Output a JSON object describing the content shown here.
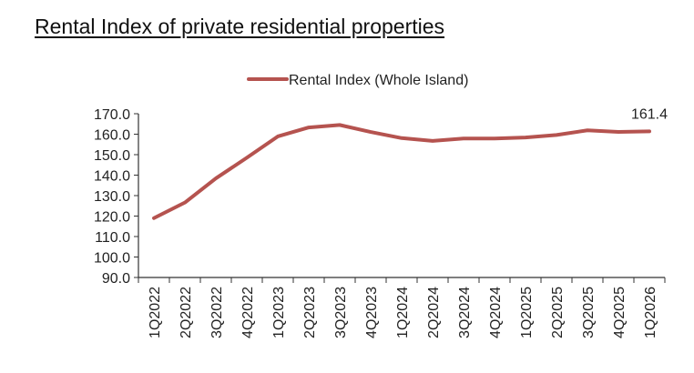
{
  "chart_data": {
    "type": "line",
    "title": "Rental Index of private residential properties",
    "xlabel": "",
    "ylabel": "",
    "categories": [
      "1Q2022",
      "2Q2022",
      "3Q2022",
      "4Q2022",
      "1Q2023",
      "2Q2023",
      "3Q2023",
      "4Q2023",
      "1Q2024",
      "2Q2024",
      "3Q2024",
      "4Q2024",
      "1Q2025",
      "2Q2025",
      "3Q2025",
      "4Q2025",
      "1Q2026"
    ],
    "series": [
      {
        "name": "Rental Index (Whole Island)",
        "color": "#b5534f",
        "values": [
          119.0,
          126.6,
          138.4,
          148.5,
          158.9,
          163.3,
          164.5,
          161.1,
          158.1,
          156.7,
          157.9,
          157.9,
          158.4,
          159.6,
          161.9,
          161.1,
          161.4
        ]
      }
    ],
    "ylim": [
      90,
      170
    ],
    "yticks": [
      "90.0",
      "100.0",
      "110.0",
      "120.0",
      "130.0",
      "140.0",
      "150.0",
      "160.0",
      "170.0"
    ],
    "data_labels": [
      {
        "category": "1Q2026",
        "text": "161.4"
      }
    ],
    "grid": false,
    "legend": "top"
  }
}
